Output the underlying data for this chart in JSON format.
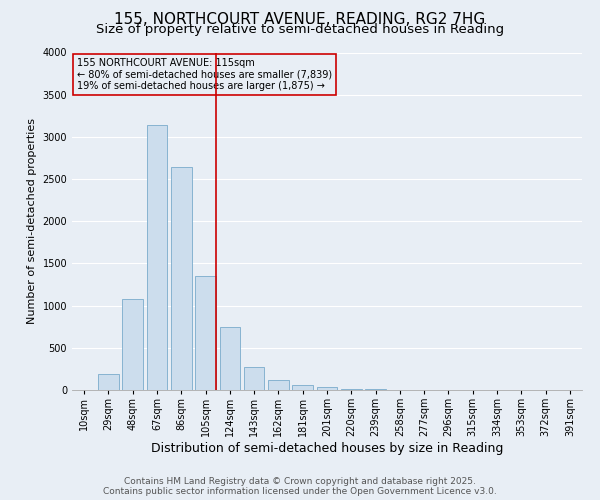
{
  "title": "155, NORTHCOURT AVENUE, READING, RG2 7HG",
  "subtitle": "Size of property relative to semi-detached houses in Reading",
  "xlabel": "Distribution of semi-detached houses by size in Reading",
  "ylabel": "Number of semi-detached properties",
  "categories": [
    "10sqm",
    "29sqm",
    "48sqm",
    "67sqm",
    "86sqm",
    "105sqm",
    "124sqm",
    "143sqm",
    "162sqm",
    "181sqm",
    "201sqm",
    "220sqm",
    "239sqm",
    "258sqm",
    "277sqm",
    "296sqm",
    "315sqm",
    "334sqm",
    "353sqm",
    "372sqm",
    "391sqm"
  ],
  "values": [
    0,
    190,
    1080,
    3140,
    2640,
    1350,
    750,
    270,
    120,
    55,
    30,
    15,
    8,
    4,
    2,
    1,
    0,
    0,
    0,
    0,
    0
  ],
  "bar_color": "#ccdded",
  "bar_edge_color": "#7aabcc",
  "vline_color": "#cc0000",
  "vline_position": 5.42,
  "annotation_title": "155 NORTHCOURT AVENUE: 115sqm",
  "annotation_line1": "← 80% of semi-detached houses are smaller (7,839)",
  "annotation_line2": "19% of semi-detached houses are larger (1,875) →",
  "ylim_max": 4000,
  "yticks": [
    0,
    500,
    1000,
    1500,
    2000,
    2500,
    3000,
    3500,
    4000
  ],
  "bg_color": "#e8eef5",
  "grid_color": "#ffffff",
  "footer1": "Contains HM Land Registry data © Crown copyright and database right 2025.",
  "footer2": "Contains public sector information licensed under the Open Government Licence v3.0.",
  "title_fontsize": 11,
  "subtitle_fontsize": 9.5,
  "ylabel_fontsize": 8,
  "xlabel_fontsize": 9,
  "tick_fontsize": 7,
  "annot_fontsize": 7,
  "footer_fontsize": 6.5
}
